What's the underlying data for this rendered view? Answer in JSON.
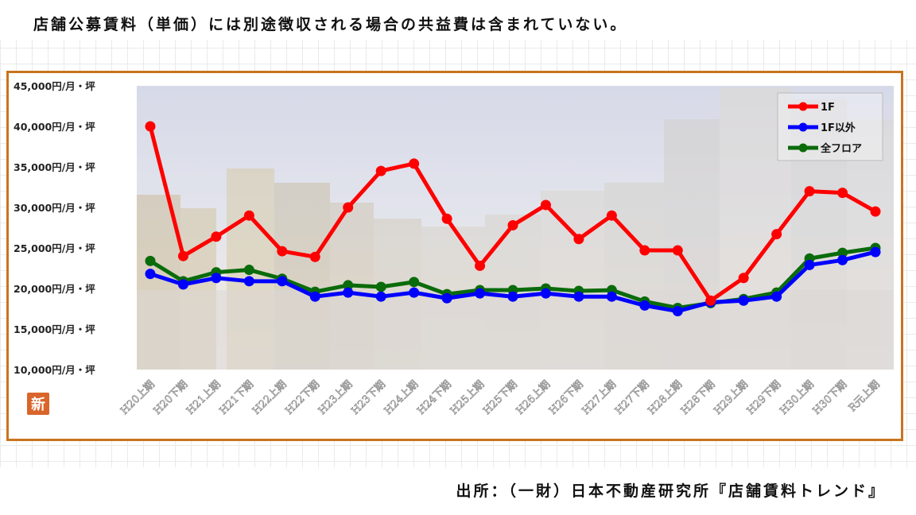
{
  "note": "店舗公募賃料（単価）には別途徴収される場合の共益費は含まれていない。",
  "source": "出所：（一財）日本不動産研究所『店舗賃料トレンド』",
  "badge": "新",
  "colors": {
    "frame": "#c8741e",
    "series_1f": "#ff0000",
    "series_non1f": "#0000ff",
    "series_all": "#0a6b0a"
  },
  "chart_data": {
    "type": "line",
    "categories": [
      "H20上期",
      "H20下期",
      "H21上期",
      "H21下期",
      "H22上期",
      "H22下期",
      "H23上期",
      "H23下期",
      "H24上期",
      "H24下期",
      "H25上期",
      "H25下期",
      "H26上期",
      "H26下期",
      "H27上期",
      "H27下期",
      "H28上期",
      "H28下期",
      "H29上期",
      "H29下期",
      "H30上期",
      "H30下期",
      "R元上期"
    ],
    "ylim": [
      10000,
      45000
    ],
    "yticks": [
      10000,
      15000,
      20000,
      25000,
      30000,
      35000,
      40000,
      45000
    ],
    "ytick_labels": [
      "10,000円/月・坪",
      "15,000円/月・坪",
      "20,000円/月・坪",
      "25,000円/月・坪",
      "30,000円/月・坪",
      "35,000円/月・坪",
      "40,000円/月・坪",
      "45,000円/月・坪"
    ],
    "legend_position": "top-right",
    "series": [
      {
        "name": "1F",
        "color": "#ff0000",
        "values": [
          40000,
          24000,
          26400,
          29000,
          24600,
          23900,
          30000,
          34500,
          35400,
          28600,
          22800,
          27800,
          30300,
          26100,
          29000,
          24700,
          24700,
          18500,
          21300,
          26700,
          32000,
          31800,
          29500
        ]
      },
      {
        "name": "1F以外",
        "color": "#0000ff",
        "values": [
          21800,
          20500,
          21300,
          20900,
          20900,
          19000,
          19500,
          19000,
          19500,
          18800,
          19400,
          19000,
          19400,
          19000,
          19000,
          17900,
          17200,
          18300,
          18500,
          19000,
          22900,
          23500,
          24500
        ]
      },
      {
        "name": "全フロア",
        "color": "#0a6b0a",
        "values": [
          23400,
          20900,
          22000,
          22300,
          21200,
          19600,
          20400,
          20200,
          20800,
          19300,
          19800,
          19800,
          20000,
          19700,
          19800,
          18400,
          17600,
          18200,
          18700,
          19500,
          23700,
          24400,
          25000
        ]
      }
    ]
  }
}
